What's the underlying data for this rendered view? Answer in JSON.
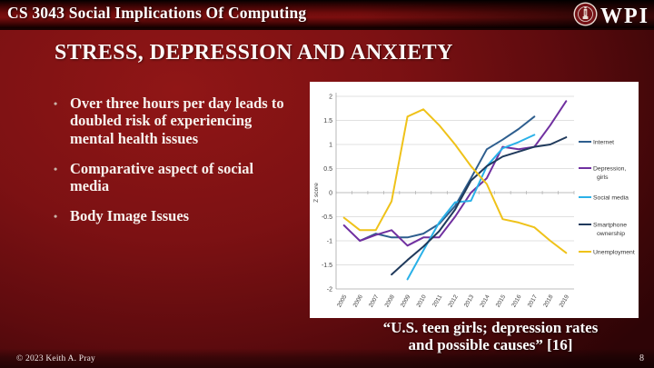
{
  "header": {
    "course_title": "CS 3043 Social Implications Of Computing",
    "logo_text": "WPI",
    "logo_icon": "wpi-seal-icon"
  },
  "slide": {
    "title": "STRESS, DEPRESSION AND ANXIETY",
    "bullets": [
      [
        "Over three hours per day leads to",
        "doubled risk of experiencing",
        "mental health issues"
      ],
      [
        "Comparative aspect of social",
        "media"
      ],
      [
        "Body Image Issues"
      ]
    ]
  },
  "caption": {
    "line1": "“U.S. teen girls; depression rates",
    "line2": "and possible causes” [16]"
  },
  "footer": {
    "copyright": "© 2023 Keith A. Pray",
    "page_number": "8"
  },
  "colors": {
    "slide_red": "#7c1113",
    "header_red": "#7c0f0f",
    "chart_panel_bg": "#ffffff",
    "text": "#ffffff",
    "grid": "#d6d6d6",
    "axis": "#a6a6a6",
    "chart_text": "#404040"
  },
  "chart_data": {
    "type": "line",
    "title": "",
    "xlabel": "",
    "ylabel": "Z score",
    "ylim": [
      -2,
      2
    ],
    "ytick_step": 0.5,
    "grid": true,
    "legend_position": "right",
    "categories": [
      "2005",
      "2006",
      "2007",
      "2008",
      "2009",
      "2010",
      "2011",
      "2012",
      "2013",
      "2014",
      "2015",
      "2016",
      "2017",
      "2018",
      "2019"
    ],
    "series": [
      {
        "name": "Internet",
        "color": "#2e5e8e",
        "values": [
          null,
          -1.0,
          -0.85,
          -0.93,
          -0.93,
          -0.85,
          -0.65,
          -0.28,
          0.3,
          0.9,
          1.1,
          1.32,
          1.58,
          null,
          null
        ]
      },
      {
        "name": "Depression, girls",
        "color": "#7030a0",
        "values": [
          -0.68,
          -1.0,
          -0.88,
          -0.78,
          -1.1,
          -0.93,
          -0.93,
          -0.5,
          0.0,
          0.3,
          0.95,
          0.9,
          0.95,
          1.4,
          1.9
        ]
      },
      {
        "name": "Social media",
        "color": "#2ab1e8",
        "values": [
          null,
          null,
          null,
          null,
          -1.8,
          -1.2,
          -0.62,
          -0.2,
          -0.17,
          0.55,
          0.92,
          1.05,
          1.2,
          null,
          null
        ]
      },
      {
        "name": "Smartphone ownership",
        "color": "#203a5c",
        "values": [
          null,
          null,
          null,
          -1.7,
          -1.4,
          -1.12,
          -0.8,
          -0.35,
          0.25,
          0.55,
          0.75,
          0.85,
          0.95,
          1.0,
          1.15
        ]
      },
      {
        "name": "Unemployment",
        "color": "#efc219",
        "values": [
          -0.52,
          -0.78,
          -0.78,
          -0.18,
          1.58,
          1.73,
          1.4,
          1.0,
          0.55,
          0.18,
          -0.55,
          -0.62,
          -0.72,
          -1.0,
          -1.25
        ]
      }
    ]
  }
}
